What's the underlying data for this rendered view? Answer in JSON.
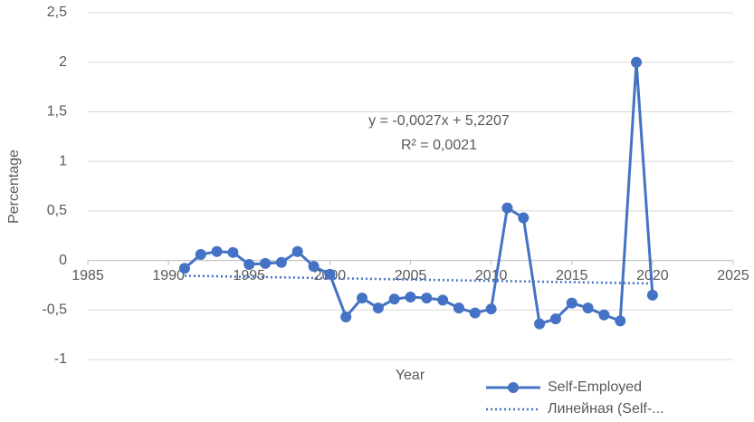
{
  "chart_data": {
    "type": "line",
    "x_label": "Year",
    "y_label": "Percentage",
    "x": [
      1991,
      1992,
      1993,
      1994,
      1995,
      1996,
      1997,
      1998,
      1999,
      2000,
      2001,
      2002,
      2003,
      2004,
      2005,
      2006,
      2007,
      2008,
      2009,
      2010,
      2011,
      2012,
      2013,
      2014,
      2015,
      2016,
      2017,
      2018,
      2019,
      2020
    ],
    "series": [
      {
        "name": "Self-Employed",
        "color": "#4472c4",
        "values": [
          -0.08,
          0.06,
          0.09,
          0.08,
          -0.04,
          -0.03,
          -0.02,
          0.09,
          -0.06,
          -0.14,
          -0.57,
          -0.38,
          -0.48,
          -0.39,
          -0.37,
          -0.38,
          -0.4,
          -0.48,
          -0.53,
          -0.49,
          0.53,
          0.43,
          -0.64,
          -0.59,
          -0.43,
          -0.48,
          -0.55,
          -0.61,
          2.0,
          -0.35
        ]
      },
      {
        "name": "Линейная (Self-...",
        "color": "#4472c4",
        "style": "dotted",
        "x": [
          1991,
          2020
        ],
        "values": [
          -0.155,
          -0.233
        ]
      }
    ],
    "annotations": [
      "y = -0,0027x + 5,2207",
      "R² = 0,0021"
    ],
    "xlim": [
      1985,
      2025
    ],
    "xticks": [
      1985,
      1990,
      1995,
      2000,
      2005,
      2010,
      2015,
      2020,
      2025
    ],
    "ylim": [
      -1,
      2.5
    ],
    "yticks": [
      -1,
      {
        "value": -0.5,
        "label": "-0,5"
      },
      0,
      {
        "value": 0.5,
        "label": "0,5"
      },
      1,
      {
        "value": 1.5,
        "label": "1,5"
      },
      2,
      {
        "value": 2.5,
        "label": "2,5"
      }
    ],
    "grid": true,
    "legend": "bottom-right"
  }
}
